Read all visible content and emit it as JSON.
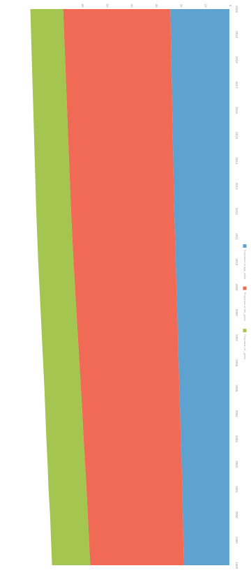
{
  "chart_data": {
    "type": "area",
    "stacked": true,
    "orientation": "rotated-90-clockwise",
    "x": [
      1998,
      1999,
      2000,
      2001,
      2002,
      2003,
      2004,
      2005,
      2006,
      2007,
      2008,
      2009,
      2010,
      2011,
      2012,
      2013,
      2014,
      2015,
      2016,
      2017,
      2018,
      2019,
      2020
    ],
    "xlabel": "",
    "ylabel": "",
    "ylim": [
      0,
      90
    ],
    "y_ticks": [
      0,
      10,
      20,
      30,
      40,
      50,
      60
    ],
    "grid": false,
    "legend_position": "bottom",
    "series": [
      {
        "name": "Proportion of age_white",
        "color": "#5ea3cf",
        "values": [
          18.5,
          18.7,
          18.9,
          19.1,
          19.4,
          19.7,
          20.0,
          20.3,
          20.6,
          20.9,
          21.2,
          21.5,
          21.8,
          22.1,
          22.4,
          22.6,
          22.8,
          23.0,
          23.2,
          23.4,
          23.6,
          23.8,
          24.0
        ]
      },
      {
        "name": "Proportion of the_gross",
        "color": "#f06a55",
        "values": [
          38.0,
          38.3,
          38.6,
          38.9,
          39.2,
          39.5,
          39.7,
          40.0,
          40.3,
          40.6,
          40.9,
          41.2,
          41.5,
          41.7,
          41.9,
          42.1,
          42.3,
          42.5,
          42.7,
          42.9,
          43.1,
          43.3,
          43.5
        ]
      },
      {
        "name": "Proportion of _grass",
        "color": "#a4c651",
        "values": [
          15.5,
          15.4,
          15.3,
          15.4,
          15.2,
          15.1,
          15.0,
          14.8,
          14.7,
          14.6,
          14.5,
          14.4,
          14.3,
          14.2,
          14.1,
          14.0,
          13.9,
          13.8,
          13.7,
          13.6,
          13.5,
          13.4,
          13.3
        ]
      }
    ]
  }
}
